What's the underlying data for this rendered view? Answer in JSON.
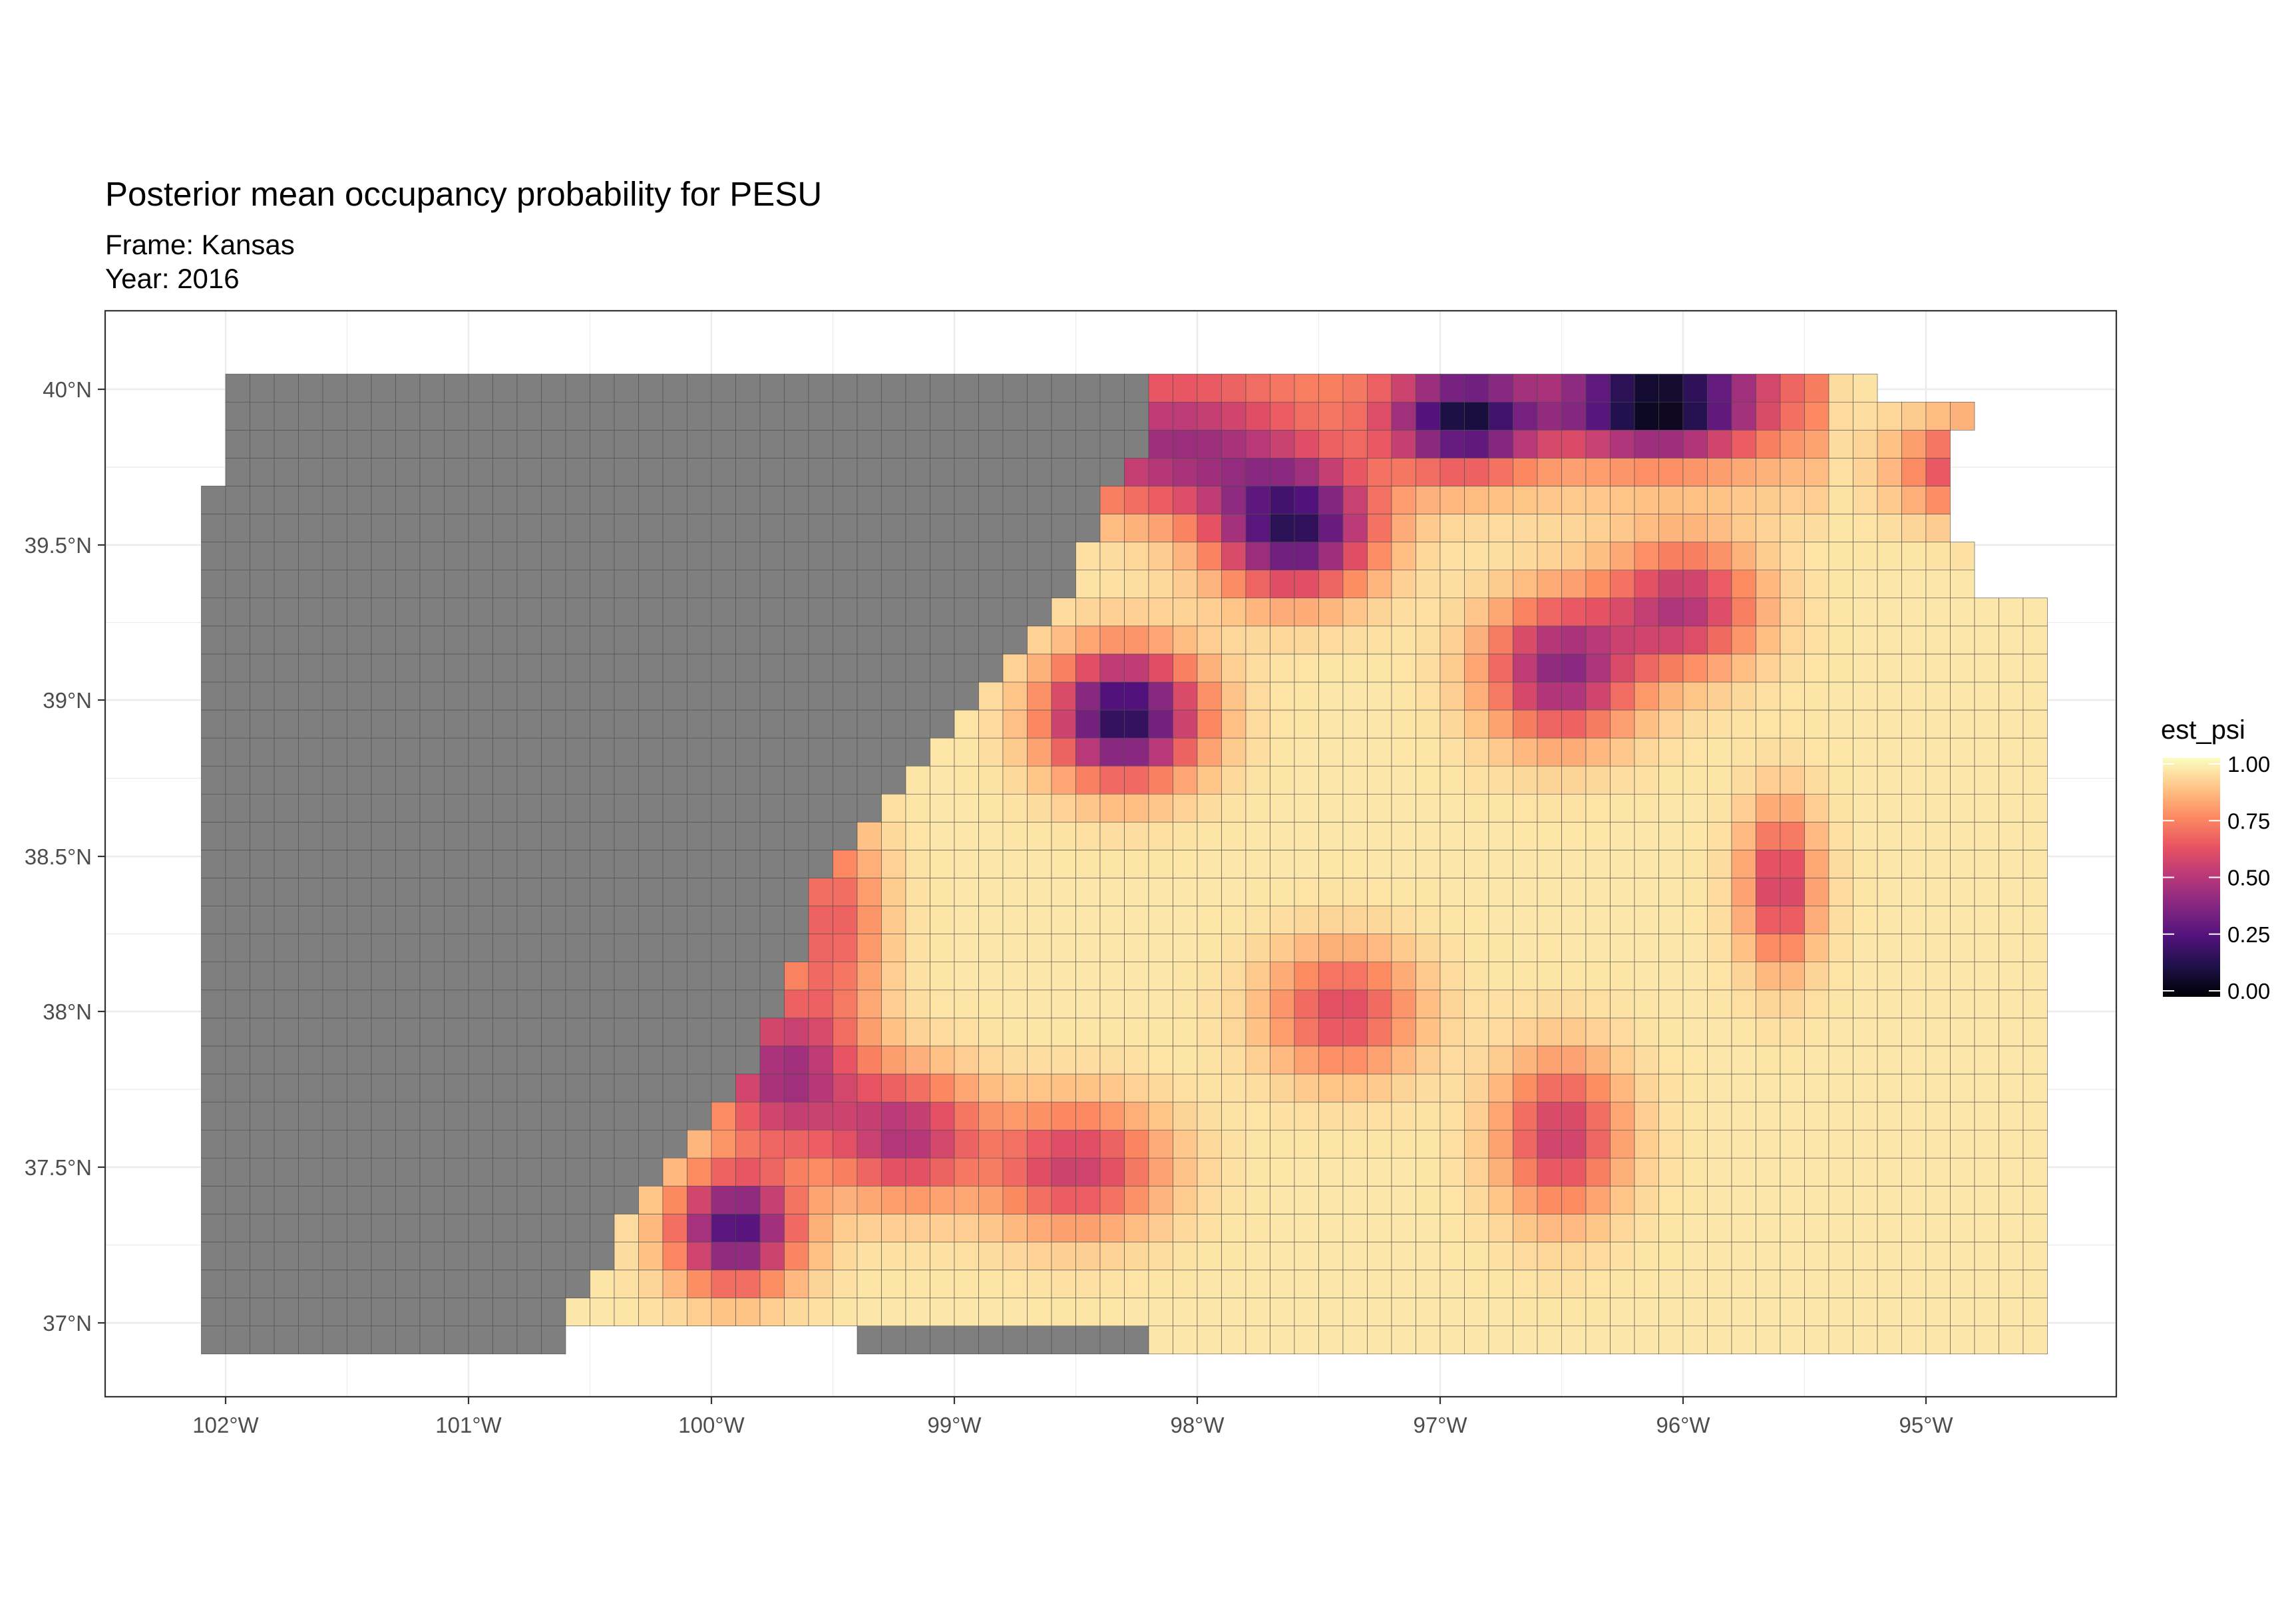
{
  "title": "Posterior mean occupancy probability for PESU",
  "subtitle_lines": [
    "Frame: Kansas",
    "Year: 2016"
  ],
  "chart_data": {
    "type": "heatmap",
    "x_ticks": [
      "102°W",
      "101°W",
      "100°W",
      "99°W",
      "98°W",
      "97°W",
      "96°W",
      "95°W"
    ],
    "y_ticks": [
      "40°N",
      "39.5°N",
      "39°N",
      "38.5°N",
      "38°N",
      "37.5°N",
      "37°N"
    ],
    "legend": {
      "title": "est_psi",
      "labels": [
        "1.00",
        "0.75",
        "0.50",
        "0.25",
        "0.00"
      ],
      "palette": [
        "#000004",
        "#1d1147",
        "#51127c",
        "#822681",
        "#b73779",
        "#e75263",
        "#fc8961",
        "#fec488",
        "#fcfdbf"
      ]
    },
    "na_color": "#7f7f7f",
    "panel_grid": true,
    "legend_position": "right"
  }
}
